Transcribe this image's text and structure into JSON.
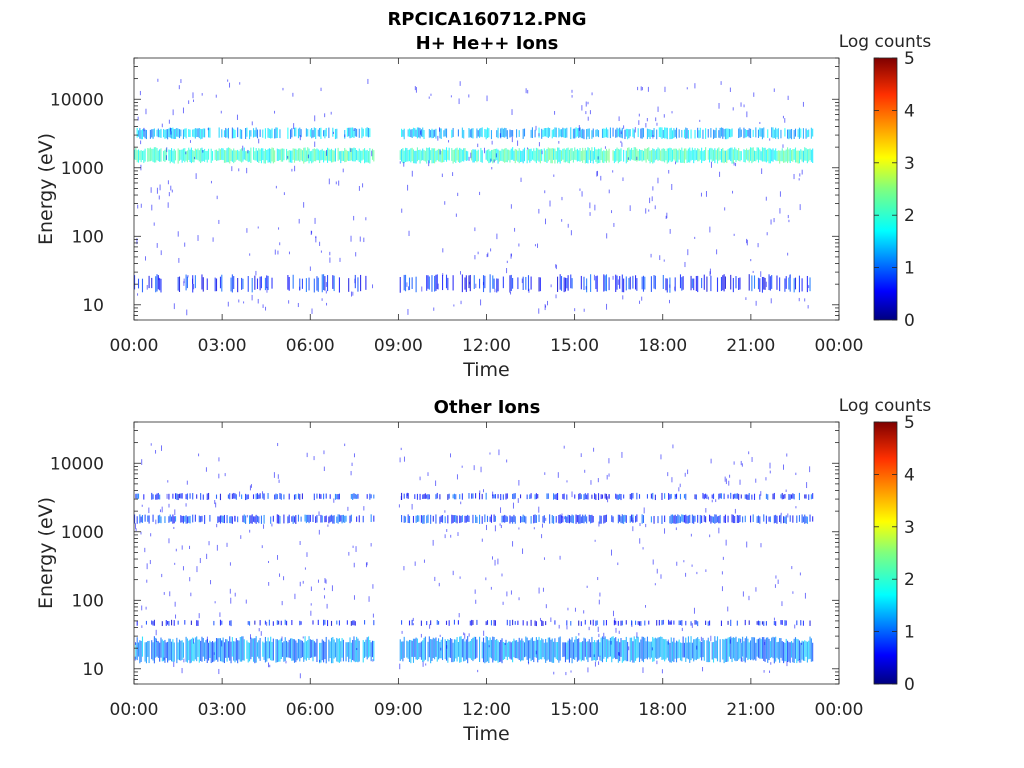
{
  "figure": {
    "title_line1": "RPCICA160712.PNG",
    "title_line2": "H+ He++ Ions"
  },
  "colors": {
    "axis": "#262626",
    "colormap": [
      "#00007f",
      "#0000ff",
      "#007fff",
      "#00ffff",
      "#7fff7f",
      "#ffff00",
      "#ff7f00",
      "#ff0000",
      "#7f0000"
    ]
  },
  "chart_data": [
    {
      "type": "heatmap",
      "title": "",
      "xlabel": "Time",
      "ylabel": "Energy (eV)",
      "x_ticks": [
        "00:00",
        "03:00",
        "06:00",
        "09:00",
        "12:00",
        "15:00",
        "18:00",
        "21:00",
        "00:00"
      ],
      "x_range_hours": [
        0,
        24
      ],
      "y_scale": "log",
      "y_range": [
        6,
        40000
      ],
      "y_ticks": [
        {
          "value": 10,
          "label": "10"
        },
        {
          "value": 100,
          "label": "100"
        },
        {
          "value": 1000,
          "label": "1000"
        },
        {
          "value": 10000,
          "label": "10000"
        }
      ],
      "data_gap_hours": [
        8.15,
        9.0
      ],
      "data_end_hours": 23.1,
      "bands": [
        {
          "energy_low": 1150,
          "energy_high": 2000,
          "log_counts": 2.1,
          "density": 0.95
        },
        {
          "energy_low": 2600,
          "energy_high": 3900,
          "log_counts": 1.5,
          "density": 0.7
        },
        {
          "energy_low": 15,
          "energy_high": 28,
          "log_counts": 0.8,
          "density": 0.35
        }
      ],
      "colorbar": {
        "label": "Log counts",
        "range": [
          0,
          5
        ],
        "ticks": [
          0,
          1,
          2,
          3,
          4,
          5
        ]
      }
    },
    {
      "type": "heatmap",
      "title": "Other Ions",
      "xlabel": "Time",
      "ylabel": "Energy (eV)",
      "x_ticks": [
        "00:00",
        "03:00",
        "06:00",
        "09:00",
        "12:00",
        "15:00",
        "18:00",
        "21:00",
        "00:00"
      ],
      "x_range_hours": [
        0,
        24
      ],
      "y_scale": "log",
      "y_range": [
        6,
        40000
      ],
      "y_ticks": [
        {
          "value": 10,
          "label": "10"
        },
        {
          "value": 100,
          "label": "100"
        },
        {
          "value": 1000,
          "label": "1000"
        },
        {
          "value": 10000,
          "label": "10000"
        }
      ],
      "data_gap_hours": [
        8.15,
        9.0
      ],
      "data_end_hours": 23.1,
      "bands": [
        {
          "energy_low": 1300,
          "energy_high": 1800,
          "log_counts": 0.9,
          "density": 0.6
        },
        {
          "energy_low": 2900,
          "energy_high": 3700,
          "log_counts": 0.8,
          "density": 0.45
        },
        {
          "energy_low": 12,
          "energy_high": 30,
          "log_counts": 1.3,
          "density": 0.95
        },
        {
          "energy_low": 42,
          "energy_high": 52,
          "log_counts": 0.7,
          "density": 0.3
        }
      ],
      "colorbar": {
        "label": "Log counts",
        "range": [
          0,
          5
        ],
        "ticks": [
          0,
          1,
          2,
          3,
          4,
          5
        ]
      }
    }
  ]
}
